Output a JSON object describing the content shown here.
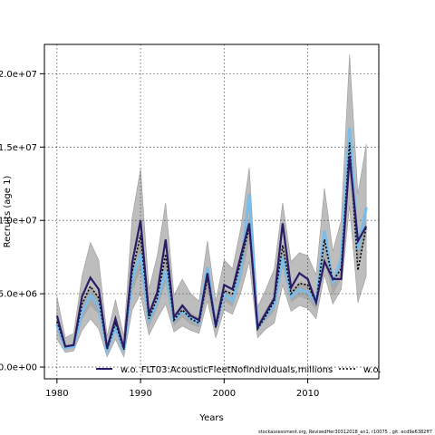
{
  "chart_data": {
    "type": "line",
    "xlabel": "Years",
    "ylabel": "Recruits (age 1)",
    "xlim": [
      1978.5,
      2018.5
    ],
    "ylim": [
      -800000,
      22000000
    ],
    "xticks": [
      1980,
      1990,
      2000,
      2010
    ],
    "xtick_labels": [
      "1980",
      "1990",
      "2000",
      "2010"
    ],
    "yticks": [
      0,
      5000000,
      10000000,
      15000000,
      20000000
    ],
    "ytick_labels": [
      "0.0e+00",
      "5.0e+06",
      "1.0e+07",
      "1.5e+07",
      "2.0e+07"
    ],
    "grid": true,
    "legend_placement": "bottom",
    "footer": "stockassessment.org, RevisedHer30312018_an1, r10075 , git: ecd9e6382ff7",
    "x": [
      1980,
      1981,
      1982,
      1983,
      1984,
      1985,
      1986,
      1987,
      1988,
      1989,
      1990,
      1991,
      1992,
      1993,
      1994,
      1995,
      1996,
      1997,
      1998,
      1999,
      2000,
      2001,
      2002,
      2003,
      2004,
      2005,
      2006,
      2007,
      2008,
      2009,
      2010,
      2011,
      2012,
      2013,
      2014,
      2015,
      2016,
      2017
    ],
    "band_outer": {
      "upper": [
        4800000,
        2000000,
        2300000,
        6200000,
        8500000,
        7300000,
        2100000,
        4600000,
        2100000,
        10200000,
        13500000,
        5300000,
        7600000,
        11200000,
        4900000,
        6000000,
        5000000,
        4500000,
        8600000,
        4500000,
        7300000,
        6700000,
        9500000,
        13600000,
        4100000,
        5300000,
        6700000,
        11200000,
        7200000,
        7800000,
        7600000,
        6300000,
        12200000,
        7900000,
        10000000,
        21300000,
        11800000,
        15200000
      ],
      "lower": [
        1900000,
        1000000,
        1100000,
        2500000,
        3300000,
        2600000,
        700000,
        1900000,
        700000,
        3900000,
        5000000,
        2200000,
        3300000,
        4300000,
        2400000,
        2800000,
        2500000,
        2300000,
        4500000,
        2000000,
        3900000,
        3600000,
        5100000,
        7200000,
        2000000,
        2600000,
        3000000,
        5600000,
        3800000,
        4200000,
        4000000,
        3300000,
        6300000,
        4300000,
        5300000,
        11000000,
        4400000,
        6200000
      ]
    },
    "band_inner": {
      "upper": [
        3300000,
        1500000,
        1600000,
        4300000,
        5600000,
        4800000,
        1400000,
        3000000,
        1400000,
        6800000,
        8800000,
        3700000,
        5100000,
        7500000,
        3600000,
        4300000,
        3700000,
        3400000,
        6300000,
        3200000,
        5400000,
        5000000,
        7200000,
        10300000,
        3000000,
        3900000,
        4900000,
        8300000,
        5300000,
        5800000,
        5600000,
        4600000,
        9000000,
        5900000,
        7400000,
        15800000,
        8800000,
        11000000
      ],
      "lower": [
        2600000,
        1200000,
        1300000,
        3200000,
        4200000,
        3600000,
        1000000,
        2400000,
        1000000,
        5100000,
        6600000,
        2800000,
        4000000,
        5700000,
        2800000,
        3400000,
        2900000,
        2700000,
        5100000,
        2500000,
        4500000,
        4100000,
        6000000,
        8500000,
        2500000,
        3200000,
        3800000,
        6800000,
        4400000,
        4800000,
        4600000,
        3900000,
        7400000,
        4900000,
        6100000,
        13100000,
        7200000,
        8900000
      ]
    },
    "series": [
      {
        "name": "w.o. FLT03:AcousticFleetNofindividuals,millions",
        "color": "#2b1a66",
        "style": "solid",
        "values": [
          3500000,
          1400000,
          1500000,
          4800000,
          6100000,
          5300000,
          1300000,
          3300000,
          1300000,
          7100000,
          10000000,
          3600000,
          5100000,
          8700000,
          3400000,
          4200000,
          3500000,
          3200000,
          6400000,
          2800000,
          5600000,
          5300000,
          7600000,
          9800000,
          2700000,
          3700000,
          4700000,
          9800000,
          5400000,
          6400000,
          6000000,
          4400000,
          7200000,
          6000000,
          6000000,
          14400000,
          8600000,
          9600000
        ]
      },
      {
        "name": "w.o.",
        "color": "#000000",
        "style": "dashed",
        "values": [
          3100000,
          1400000,
          1500000,
          4300000,
          5500000,
          4700000,
          1200000,
          3000000,
          1200000,
          6500000,
          9000000,
          3300000,
          4700000,
          7700000,
          3200000,
          3900000,
          3300000,
          3000000,
          6100000,
          2700000,
          5200000,
          5000000,
          7200000,
          9500000,
          2600000,
          3500000,
          4500000,
          8300000,
          5000000,
          5700000,
          5600000,
          4400000,
          8700000,
          5900000,
          6700000,
          15300000,
          6600000,
          9600000
        ]
      },
      {
        "name": "",
        "color": "#7bbce8",
        "style": "solid",
        "values": [
          2900000,
          1300000,
          1400000,
          3700000,
          4900000,
          4200000,
          1100000,
          2700000,
          1100000,
          6000000,
          7700000,
          3200000,
          4500000,
          6600000,
          3200000,
          3800000,
          3300000,
          3000000,
          6800000,
          2800000,
          5000000,
          4500000,
          6600000,
          11800000,
          2700000,
          3500000,
          4200000,
          7500000,
          4800000,
          5300000,
          5100000,
          4400000,
          9300000,
          5700000,
          7400000,
          16300000,
          8000000,
          10900000
        ]
      }
    ]
  }
}
